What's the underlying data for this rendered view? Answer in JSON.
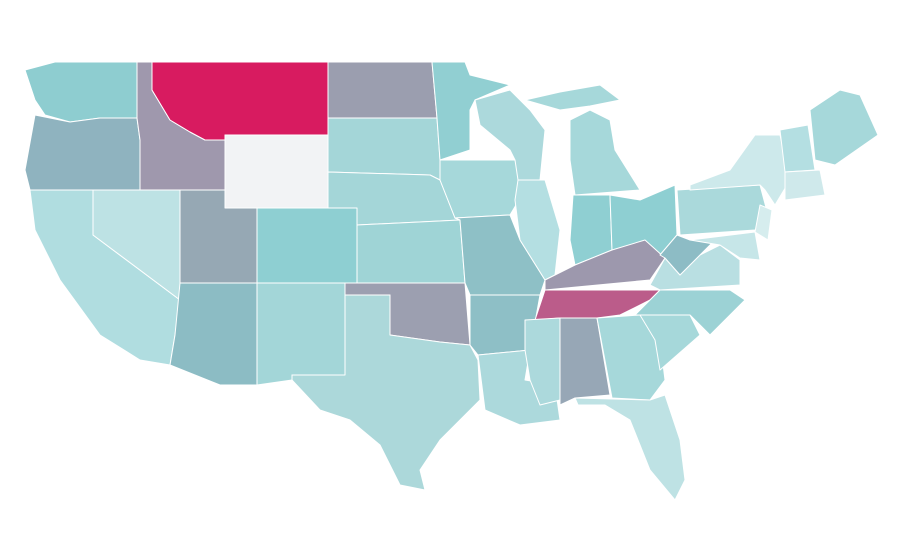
{
  "map": {
    "fills": [
      "#8ecdd0",
      "#8fb3bf",
      "#b0dde0",
      "#bde2e4",
      "#9f98ad",
      "#d81b60",
      "#f2f3f5",
      "#96a8b4",
      "#8ecfd2",
      "#8cbcc4",
      "#a3d6d8",
      "#9b9eaf",
      "#a4d6d8",
      "#a4d6d8",
      "#9fd4d6",
      "#9c9fb0",
      "#acd8da",
      "#91cfd2",
      "#a6d8da",
      "#8ec0c6",
      "#8ebfc6",
      "#acd9dc",
      "#acd9dc",
      "#b4dfe2",
      "#a6d8da",
      "#a6d8da",
      "#8fcfd2",
      "#8ecfd2",
      "#9d98ad",
      "#bb5c8a",
      "#acd9dc",
      "#97a7b6",
      "#a6d8da",
      "#bee2e4",
      "#a6d8da",
      "#9cd2d5",
      "#b9dfe2",
      "#8dbcc5",
      "#aad9db",
      "#cde9eb",
      "#d6edee",
      "#c6e6e8",
      "#b4dfe2",
      "#a6d8da",
      "#cfe9eb"
    ]
  }
}
